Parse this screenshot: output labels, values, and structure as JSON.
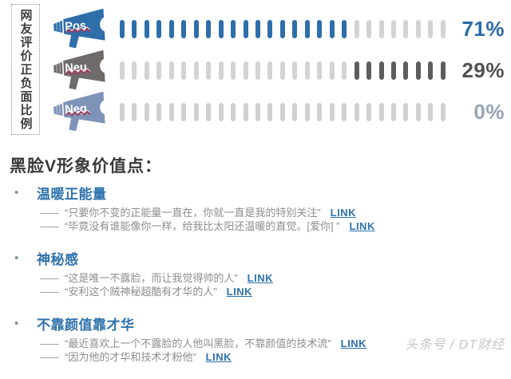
{
  "sidebar": {
    "title": "网友评价正负面比例"
  },
  "chart": {
    "total_dashes": 27,
    "zigzag_color": "#9c3a57",
    "rows": [
      {
        "icon_label": "Pos",
        "icon_color": "#2e6ea9",
        "value_text": "71%",
        "value_color": "#2a6ca6",
        "fill_mode": "start",
        "fill_count": 19,
        "fill_color": "#2e6ea9",
        "base_color": "#d3d3d3"
      },
      {
        "icon_label": "Neu",
        "icon_color": "#6f6b6b",
        "value_text": "29%",
        "value_color": "#525252",
        "fill_mode": "end",
        "fill_count": 8,
        "fill_color": "#5d5d5d",
        "base_color": "#d3d3d3"
      },
      {
        "icon_label": "Neg",
        "icon_color": "#7d93b8",
        "value_text": "0%",
        "value_color": "#98a4b2",
        "fill_mode": "none",
        "fill_count": 0,
        "fill_color": "#5d5d5d",
        "base_color": "#d0d0d0"
      }
    ]
  },
  "chart_data": {
    "type": "bar",
    "title": "网友评价正负面比例",
    "categories": [
      "Pos",
      "Neu",
      "Neg"
    ],
    "values": [
      71,
      29,
      0
    ],
    "unit": "%",
    "xlim": [
      0,
      100
    ],
    "legend_position": "none",
    "grid": false
  },
  "section": {
    "title": "黑脸V形象价值点：",
    "points": [
      {
        "title": "温暖正能量",
        "quotes": [
          {
            "dash": "——",
            "text": "“只要你不变的正能量一直在，你就一直是我的特别关注”",
            "link": "LINK"
          },
          {
            "dash": "——",
            "text": "“毕竟没有谁能像你一样，给我比太阳还温暖的直觉。[爱你] ”",
            "link": "LINK"
          }
        ]
      },
      {
        "title": "神秘感",
        "quotes": [
          {
            "dash": "——",
            "text": "“这是唯一不露脸，而让我觉得帅的人”",
            "link": "LINK"
          },
          {
            "dash": "——",
            "text": "“安利这个贼神秘超酷有才华的人”",
            "link": "LINK"
          }
        ]
      },
      {
        "title": "不靠颜值靠才华",
        "quotes": [
          {
            "dash": "——",
            "text": "“最近喜欢上一个不露脸的人他叫黑脸，不靠颜值的技术流”",
            "link": "LINK"
          },
          {
            "dash": "——",
            "text": "“因为他的才华和技术才粉他”",
            "link": "LINK"
          }
        ]
      }
    ]
  },
  "watermark": "头条号 / DT财经"
}
